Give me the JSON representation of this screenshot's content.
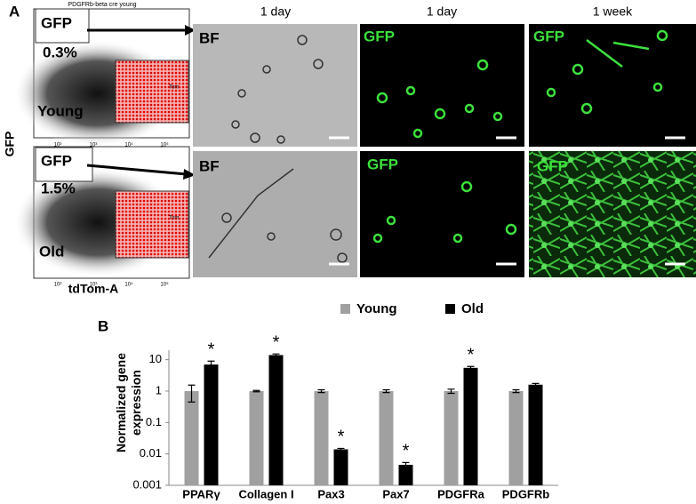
{
  "panel_a": {
    "label": "A",
    "y_axis_label": "GFP",
    "x_axis_label": "tdTom-A",
    "flow_title": "PDGFRb-beta cre young",
    "flow_ticks": [
      "10²",
      "10³",
      "10⁴",
      "10⁵"
    ],
    "flow": [
      {
        "gate": "GFP",
        "percent": "0.3%",
        "group": "Young",
        "tom": "Tom"
      },
      {
        "gate": "GFP",
        "percent": "1.5%",
        "group": "Old",
        "tom": "Tom"
      }
    ],
    "column_headers": [
      "1 day",
      "1 day",
      "1 week"
    ],
    "image_labels": [
      [
        "BF",
        "GFP",
        "GFP"
      ],
      [
        "BF",
        "GFP",
        "GFP"
      ]
    ]
  },
  "chart_data": {
    "type": "bar",
    "panel_label": "B",
    "y_label": "Normalized gene expression",
    "categories": [
      "PPARγ",
      "Collagen I",
      "Pax3",
      "Pax7",
      "PDGFRa",
      "PDGFRb"
    ],
    "series": [
      {
        "name": "Young",
        "color": "#a0a0a0",
        "values": [
          1,
          1,
          1,
          1,
          1,
          1
        ],
        "errors": [
          0.55,
          0.05,
          0.1,
          0.1,
          0.15,
          0.1
        ]
      },
      {
        "name": "Old",
        "color": "#000000",
        "values": [
          7,
          14,
          0.014,
          0.0045,
          5.5,
          1.6
        ],
        "errors": [
          2,
          1.2,
          0.001,
          0.0008,
          0.6,
          0.15
        ],
        "markers": [
          "*",
          "*",
          "*",
          "*",
          "*",
          null
        ]
      }
    ],
    "log_scale": true,
    "ylim": [
      0.001,
      20
    ],
    "yticks": [
      10,
      1,
      0.1,
      0.01,
      0.001
    ]
  }
}
